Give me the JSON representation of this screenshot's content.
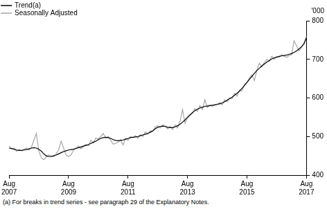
{
  "chart_data": {
    "type": "line",
    "legend": "upper left",
    "y_label": "'000",
    "footnote": "(a) For breaks in trend series - see paragraph 29 of the Explanatory Notes.",
    "categories": [
      "Aug 2007",
      null,
      null,
      null,
      null,
      null,
      null,
      null,
      null,
      null,
      null,
      null,
      null,
      null,
      null,
      null,
      null,
      null,
      null,
      null,
      null,
      null,
      null,
      null,
      "Aug 2009",
      null,
      null,
      null,
      null,
      null,
      null,
      null,
      null,
      null,
      null,
      null,
      null,
      null,
      null,
      null,
      null,
      null,
      null,
      null,
      null,
      null,
      null,
      null,
      "Aug 2011",
      null,
      null,
      null,
      null,
      null,
      null,
      null,
      null,
      null,
      null,
      null,
      null,
      null,
      null,
      null,
      null,
      null,
      null,
      null,
      null,
      null,
      null,
      null,
      "Aug 2013",
      null,
      null,
      null,
      null,
      null,
      null,
      null,
      null,
      null,
      null,
      null,
      null,
      null,
      null,
      null,
      null,
      null,
      null,
      null,
      null,
      null,
      null,
      null,
      "Aug 2015",
      null,
      null,
      null,
      null,
      null,
      null,
      null,
      null,
      null,
      null,
      null,
      null,
      null,
      null,
      null,
      null,
      null,
      null,
      null,
      null,
      null,
      null,
      null,
      "Aug 2017"
    ],
    "series": [
      {
        "name": "Trend(a)",
        "color": "#000000",
        "values": [
          470,
          469,
          467,
          465,
          464,
          464,
          465,
          466,
          468,
          470,
          471,
          470,
          467,
          462,
          455,
          450,
          448,
          448,
          450,
          452,
          455,
          458,
          461,
          463,
          465,
          466,
          467,
          469,
          471,
          473,
          475,
          477,
          479,
          482,
          485,
          488,
          492,
          495,
          497,
          498,
          497,
          495,
          492,
          490,
          489,
          490,
          491,
          493,
          495,
          497,
          498,
          499,
          500,
          502,
          504,
          506,
          508,
          511,
          515,
          520,
          524,
          526,
          527,
          526,
          524,
          523,
          523,
          525,
          528,
          532,
          537,
          543,
          550,
          556,
          562,
          567,
          571,
          574,
          576,
          578,
          579,
          580,
          581,
          582,
          583,
          585,
          587,
          590,
          594,
          598,
          602,
          607,
          612,
          618,
          625,
          632,
          640,
          648,
          656,
          664,
          671,
          677,
          683,
          688,
          693,
          697,
          701,
          704,
          706,
          708,
          709,
          710,
          711,
          713,
          715,
          718,
          722,
          727,
          733,
          740,
          755
        ]
      },
      {
        "name": "Seasonally Adjusted",
        "color": "#a6a6a6",
        "values": [
          475,
          468,
          470,
          462,
          466,
          463,
          467,
          470,
          465,
          472,
          490,
          508,
          462,
          445,
          440,
          447,
          452,
          450,
          448,
          455,
          466,
          488,
          470,
          452,
          448,
          452,
          465,
          470,
          475,
          468,
          474,
          480,
          476,
          490,
          484,
          496,
          494,
          500,
          508,
          496,
          500,
          490,
          480,
          482,
          485,
          492,
          478,
          495,
          490,
          500,
          497,
          502,
          496,
          505,
          500,
          512,
          506,
          515,
          513,
          525,
          528,
          522,
          530,
          527,
          520,
          526,
          518,
          530,
          522,
          540,
          570,
          535,
          548,
          555,
          560,
          572,
          565,
          580,
          570,
          595,
          575,
          582,
          578,
          583,
          584,
          588,
          582,
          595,
          590,
          600,
          598,
          612,
          605,
          620,
          618,
          635,
          640,
          652,
          660,
          645,
          672,
          690,
          680,
          692,
          700,
          695,
          708,
          700,
          706,
          705,
          712,
          708,
          705,
          710,
          712,
          748,
          735,
          722,
          730,
          742,
          760
        ]
      }
    ],
    "ylim": [
      400,
      800
    ],
    "yticks": [
      400,
      500,
      600,
      700,
      800
    ],
    "grid": false
  }
}
